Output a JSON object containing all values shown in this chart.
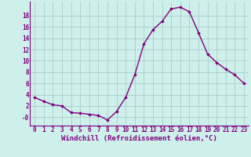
{
  "x": [
    0,
    1,
    2,
    3,
    4,
    5,
    6,
    7,
    8,
    9,
    10,
    11,
    12,
    13,
    14,
    15,
    16,
    17,
    18,
    19,
    20,
    21,
    22,
    23
  ],
  "y": [
    3.5,
    2.8,
    2.2,
    2.0,
    0.8,
    0.7,
    0.5,
    0.3,
    -0.5,
    1.0,
    3.5,
    7.5,
    13.0,
    15.5,
    17.0,
    19.2,
    19.5,
    18.7,
    15.0,
    11.2,
    9.7,
    8.5,
    7.5,
    6.0
  ],
  "line_color": "#800080",
  "marker": "D",
  "marker_size": 1.8,
  "line_width": 1.0,
  "bg_color": "#cef0eb",
  "grid_color": "#aacccc",
  "xlabel": "Windchill (Refroidissement éolien,°C)",
  "xlabel_color": "#800080",
  "xlabel_fontsize": 6.5,
  "tick_color": "#800080",
  "tick_fontsize": 5.5,
  "ylim": [
    -1.5,
    20.5
  ],
  "yticks": [
    0,
    2,
    4,
    6,
    8,
    10,
    12,
    14,
    16,
    18
  ],
  "ytick_labels": [
    "-0",
    "2",
    "4",
    "6",
    "8",
    "10",
    "12",
    "14",
    "16",
    "18"
  ],
  "xlim": [
    -0.5,
    23.5
  ],
  "xticks": [
    0,
    1,
    2,
    3,
    4,
    5,
    6,
    7,
    8,
    9,
    10,
    11,
    12,
    13,
    14,
    15,
    16,
    17,
    18,
    19,
    20,
    21,
    22,
    23
  ],
  "title_color": "#800080",
  "spine_color": "#800080"
}
